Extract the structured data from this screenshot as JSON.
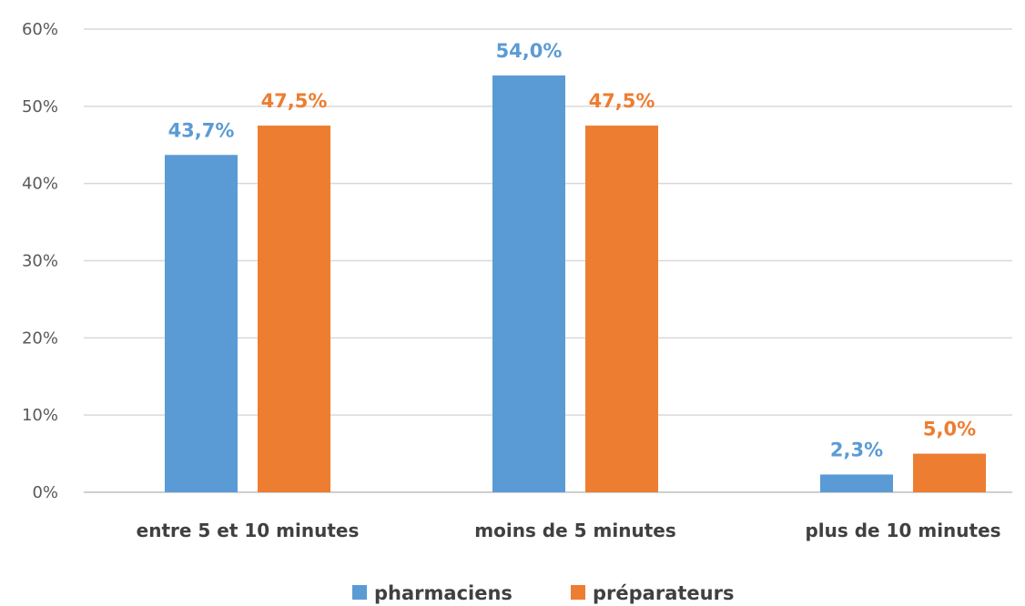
{
  "chart_data": {
    "type": "bar",
    "title": "",
    "xlabel": "",
    "ylabel": "",
    "categories": [
      "entre 5 et 10 minutes",
      "moins de 5 minutes",
      "plus de 10 minutes"
    ],
    "series": [
      {
        "name": "pharmaciens",
        "color": "#5B9BD5",
        "values": [
          43.7,
          54.0,
          2.3
        ],
        "labels": [
          "43,7%",
          "54,0%",
          "2,3%"
        ]
      },
      {
        "name": "préparateurs",
        "color": "#ED7D31",
        "values": [
          47.5,
          47.5,
          5.0
        ],
        "labels": [
          "47,5%",
          "47,5%",
          "5,0%"
        ]
      }
    ],
    "ylim": [
      0,
      60
    ],
    "yticks": [
      0,
      10,
      20,
      30,
      40,
      50,
      60
    ],
    "ytick_labels": [
      "0%",
      "10%",
      "20%",
      "30%",
      "40%",
      "50%",
      "60%"
    ],
    "grid": true,
    "legend_position": "bottom"
  }
}
